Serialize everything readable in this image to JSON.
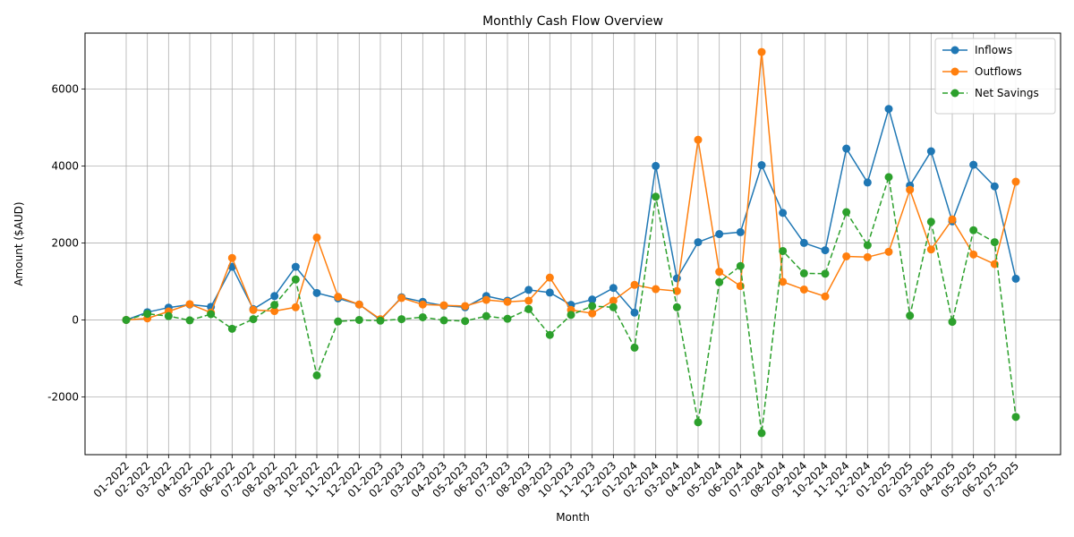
{
  "chart_data": {
    "type": "line",
    "title": "Monthly Cash Flow Overview",
    "xlabel": "Month",
    "ylabel": "Amount ($AUD)",
    "ylim": [
      -3500,
      7450
    ],
    "yticks": [
      -2000,
      0,
      2000,
      4000,
      6000
    ],
    "grid": true,
    "legend_position": "top-right",
    "categories": [
      "01-2022",
      "02-2022",
      "03-2022",
      "04-2022",
      "05-2022",
      "06-2022",
      "07-2022",
      "08-2022",
      "09-2022",
      "10-2022",
      "11-2022",
      "12-2022",
      "01-2023",
      "02-2023",
      "03-2023",
      "04-2023",
      "05-2023",
      "06-2023",
      "07-2023",
      "08-2023",
      "09-2023",
      "10-2023",
      "11-2023",
      "12-2023",
      "01-2024",
      "02-2024",
      "03-2024",
      "04-2024",
      "05-2024",
      "06-2024",
      "07-2024",
      "08-2024",
      "09-2024",
      "10-2024",
      "11-2024",
      "12-2024",
      "01-2025",
      "02-2025",
      "03-2025",
      "04-2025",
      "05-2025",
      "06-2025",
      "07-2025"
    ],
    "series": [
      {
        "name": "Inflows",
        "color": "#1f77b4",
        "dashed": false,
        "values": [
          0,
          200,
          320,
          400,
          340,
          1380,
          280,
          620,
          1380,
          700,
          560,
          400,
          0,
          590,
          470,
          370,
          330,
          620,
          500,
          780,
          710,
          390,
          530,
          830,
          190,
          4000,
          1080,
          2020,
          2230,
          2280,
          4020,
          2780,
          2000,
          1810,
          4450,
          3570,
          5480,
          3490,
          4380,
          2560,
          4030,
          3470,
          1070
        ]
      },
      {
        "name": "Outflows",
        "color": "#ff7f0e",
        "dashed": false,
        "values": [
          0,
          40,
          220,
          410,
          190,
          1610,
          260,
          230,
          330,
          2140,
          600,
          400,
          20,
          570,
          400,
          380,
          360,
          520,
          470,
          500,
          1100,
          260,
          170,
          500,
          910,
          800,
          750,
          4680,
          1250,
          880,
          6960,
          990,
          790,
          610,
          1650,
          1630,
          1770,
          3380,
          1830,
          2610,
          1700,
          1450,
          3590
        ]
      },
      {
        "name": "Net Savings",
        "color": "#2ca02c",
        "dashed": true,
        "values": [
          0,
          160,
          100,
          -10,
          150,
          -230,
          20,
          390,
          1050,
          -1440,
          -40,
          0,
          -20,
          20,
          70,
          -10,
          -30,
          100,
          30,
          280,
          -390,
          130,
          360,
          330,
          -720,
          3200,
          330,
          -2660,
          980,
          1400,
          -2940,
          1790,
          1210,
          1200,
          2800,
          1940,
          3710,
          110,
          2550,
          -50,
          2330,
          2020,
          -2520
        ]
      }
    ]
  }
}
